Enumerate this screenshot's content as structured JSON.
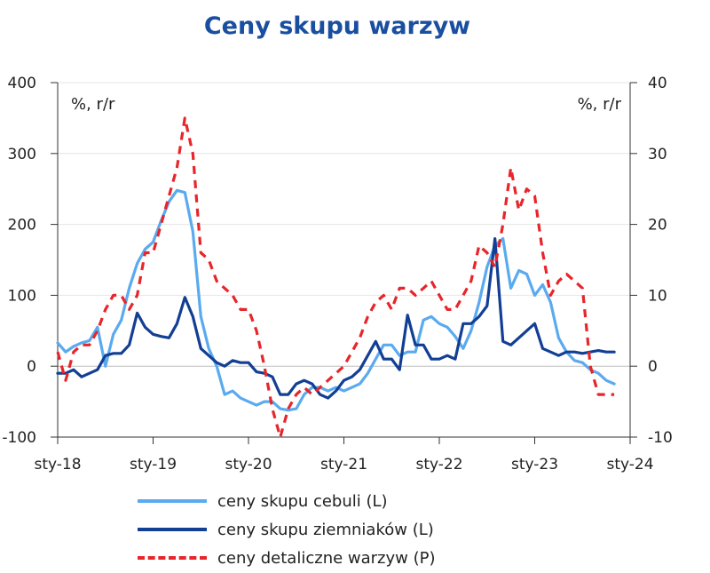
{
  "title": "Ceny skupu warzyw",
  "chart_data": {
    "type": "line",
    "left_unit": "%, r/r",
    "right_unit": "%, r/r",
    "y_left": {
      "min": -100,
      "max": 400,
      "ticks": [
        "-100",
        "0",
        "100",
        "200",
        "300",
        "400"
      ]
    },
    "y_right": {
      "min": -10,
      "max": 40,
      "ticks": [
        "-10",
        "0",
        "10",
        "20",
        "30",
        "40"
      ]
    },
    "x_ticks": [
      "sty-18",
      "sty-19",
      "sty-20",
      "sty-21",
      "sty-22",
      "sty-23",
      "sty-24"
    ],
    "x_start": "2018-01",
    "series": [
      {
        "name": "ceny skupu cebuli (L)",
        "axis": "left",
        "color": "#5aaaf0",
        "style": "solid",
        "values": [
          33,
          20,
          28,
          33,
          36,
          55,
          0,
          45,
          65,
          110,
          145,
          165,
          175,
          205,
          232,
          248,
          245,
          190,
          70,
          25,
          0,
          -40,
          -35,
          -45,
          -50,
          -55,
          -50,
          -50,
          -60,
          -62,
          -60,
          -40,
          -30,
          -30,
          -35,
          -30,
          -35,
          -30,
          -25,
          -10,
          10,
          30,
          30,
          15,
          20,
          20,
          65,
          70,
          60,
          55,
          42,
          25,
          50,
          90,
          140,
          170,
          180,
          110,
          135,
          130,
          100,
          115,
          90,
          40,
          20,
          8,
          5,
          -5,
          -10,
          -20,
          -25
        ]
      },
      {
        "name": "ceny skupu ziemniaków (L)",
        "axis": "left",
        "color": "#123f94",
        "style": "solid",
        "values": [
          -10,
          -10,
          -5,
          -15,
          -10,
          -5,
          15,
          18,
          18,
          30,
          75,
          55,
          45,
          42,
          40,
          60,
          97,
          70,
          25,
          15,
          5,
          0,
          8,
          5,
          5,
          -8,
          -10,
          -15,
          -40,
          -40,
          -25,
          -20,
          -25,
          -40,
          -45,
          -35,
          -20,
          -15,
          -5,
          15,
          35,
          10,
          10,
          -5,
          72,
          30,
          30,
          10,
          10,
          15,
          10,
          60,
          60,
          70,
          85,
          180,
          35,
          30,
          40,
          50,
          60,
          25,
          20,
          15,
          20,
          20,
          18,
          20,
          22,
          20,
          20
        ]
      },
      {
        "name": "ceny detaliczne warzyw (P)",
        "axis": "right",
        "color": "#e8252a",
        "style": "dashed",
        "values": [
          2,
          -2,
          2,
          3,
          3,
          5,
          8,
          10,
          10,
          8,
          10,
          16,
          16,
          20,
          24,
          28,
          35,
          30,
          16,
          15,
          12,
          11,
          10,
          8,
          8,
          5,
          0,
          -6,
          -10,
          -6,
          -4,
          -3,
          -4,
          -3,
          -2,
          -1,
          0,
          2,
          4,
          7,
          9,
          10,
          8,
          11,
          11,
          10,
          11,
          12,
          10,
          8,
          8,
          10,
          12,
          17,
          16,
          14,
          20,
          28,
          22,
          25,
          24,
          16,
          10,
          12,
          13,
          12,
          11,
          0,
          -4,
          -4,
          -4
        ]
      }
    ]
  }
}
